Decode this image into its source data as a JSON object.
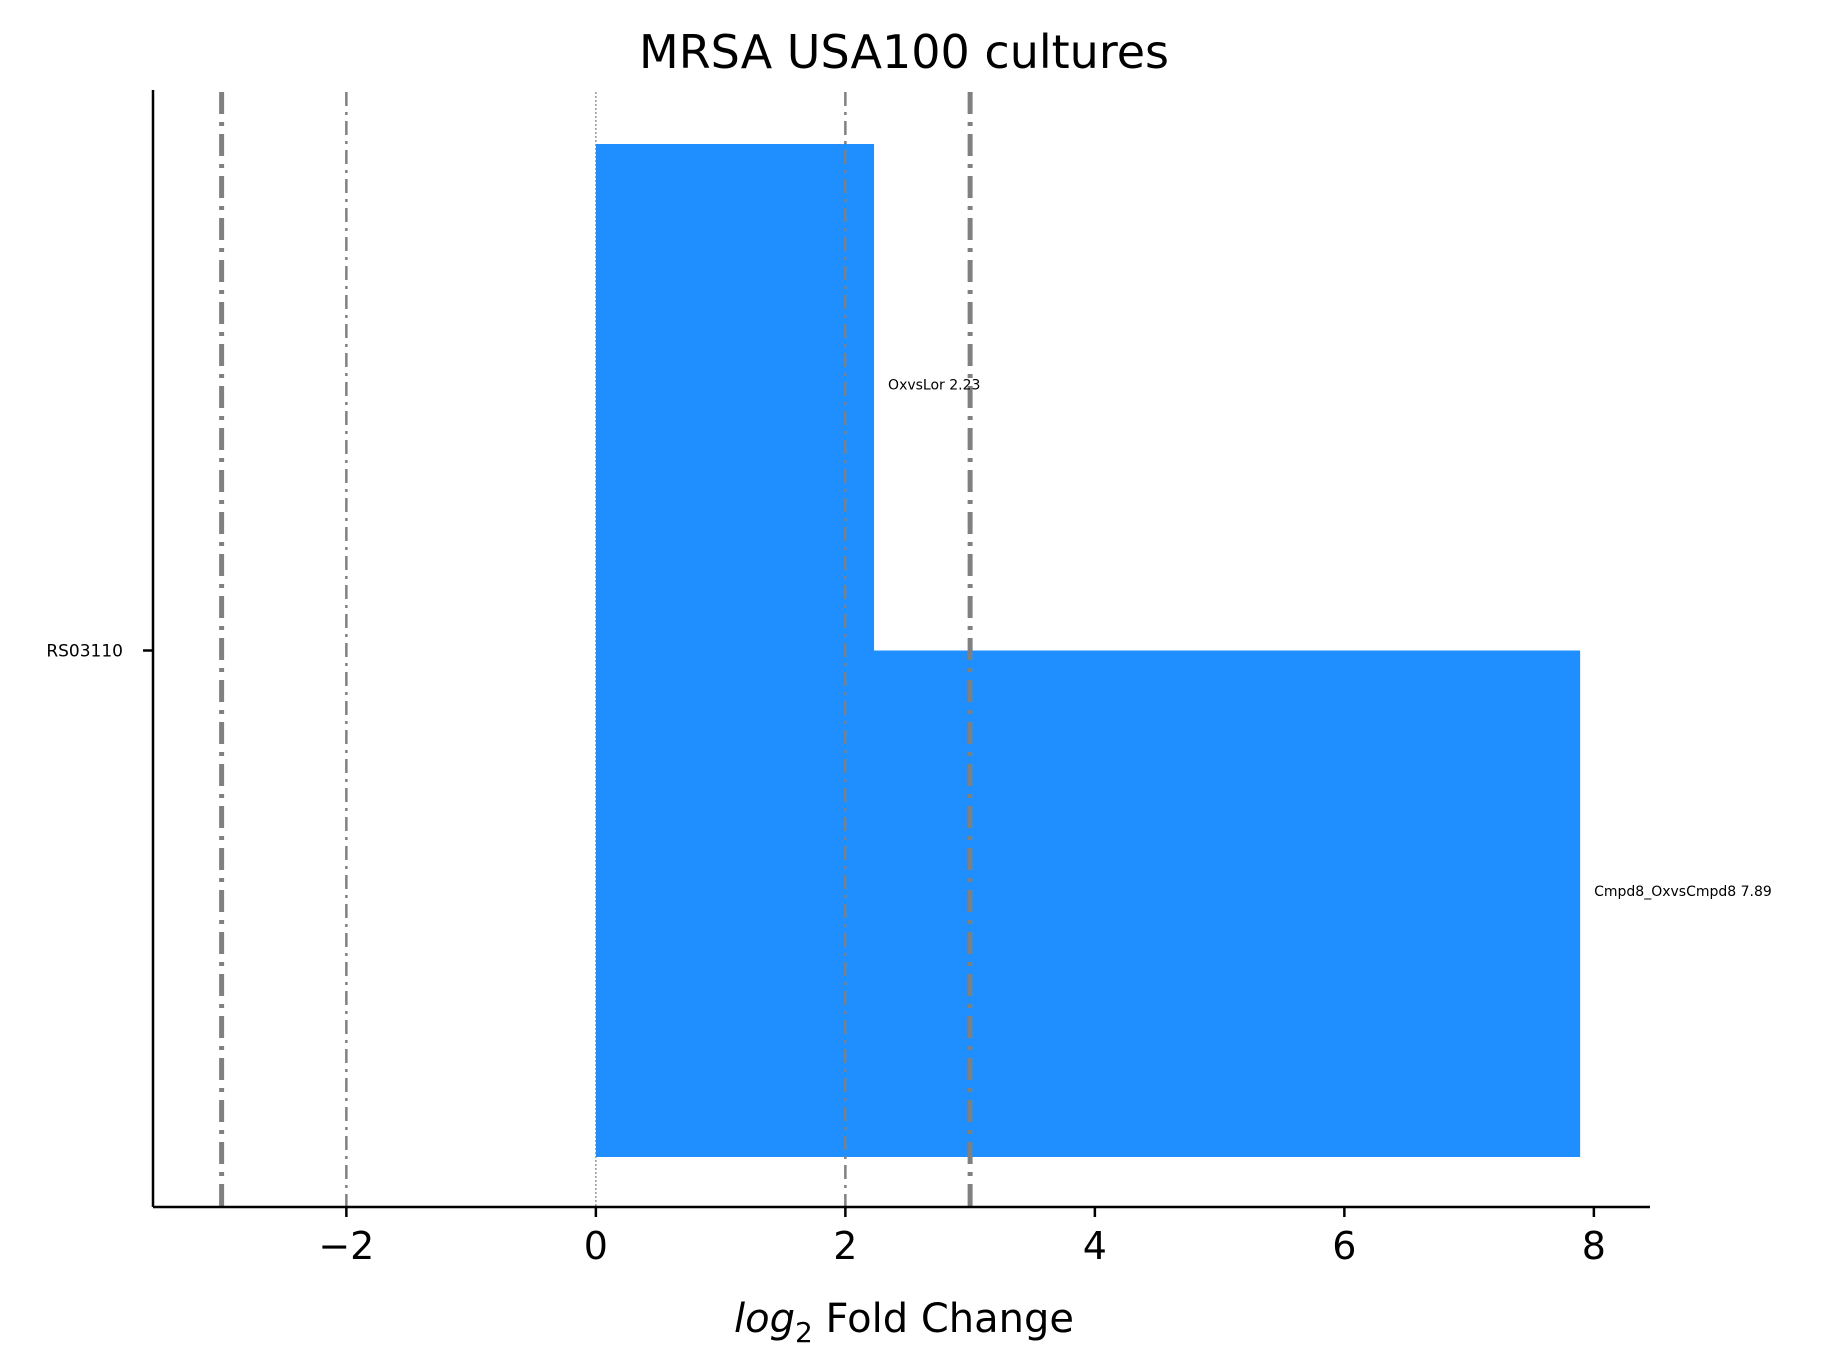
{
  "chart_data": {
    "type": "bar",
    "orientation": "horizontal",
    "title": "MRSA USA100 cultures",
    "xlabel": {
      "math": "log",
      "subscript": "2",
      "text": " Fold Change"
    },
    "ylabel": "",
    "xlim": [
      -3.55,
      8.45
    ],
    "x_ticks": [
      -2,
      0,
      2,
      4,
      6,
      8
    ],
    "x_tick_labels": [
      "−2",
      "0",
      "2",
      "4",
      "6",
      "8"
    ],
    "categories": [
      "RS03110"
    ],
    "series": [
      {
        "name": "Cmpd8_OxvsCmpd8",
        "values": [
          7.89
        ],
        "label": "Cmpd8_OxvsCmpd8 7.89"
      },
      {
        "name": "OxvsLor",
        "values": [
          2.23
        ],
        "label": "OxvsLor 2.23"
      }
    ],
    "bar_color": "#1f8fff",
    "reference_lines": [
      {
        "x": -3,
        "style": "dashdot",
        "weight": "thick"
      },
      {
        "x": -2,
        "style": "dashdot",
        "weight": "thin"
      },
      {
        "x": 0,
        "style": "dotted",
        "weight": "hair"
      },
      {
        "x": 2,
        "style": "dashdot",
        "weight": "thin"
      },
      {
        "x": 3,
        "style": "dashdot",
        "weight": "thick"
      }
    ],
    "reference_line_color": "#808080",
    "grid": false,
    "legend": "none"
  }
}
